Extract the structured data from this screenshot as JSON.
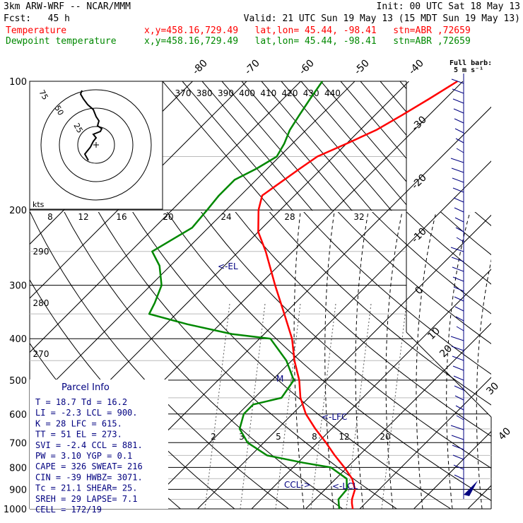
{
  "header": {
    "model": "3km ARW-WRF -- NCAR/MMM",
    "init": "Init: 00 UTC Sat 18 May 13",
    "fcst": "Fcst:   45 h",
    "valid": "Valid: 21 UTC Sun 19 May 13 (15 MDT Sun 19 May 13)",
    "temp_label": "Temperature",
    "dew_label": "Dewpoint temperature",
    "temp_loc": "x,y=458.16,729.49   lat,lon= 45.44, -98.41   stn=ABR ,72659",
    "dew_loc": "x,y=458.16,729.49   lat,lon= 45.44, -98.41   stn=ABR ,72659",
    "barb_title": "Full barb:",
    "barb_unit": "5 m s⁻¹"
  },
  "colors": {
    "temperature": "#ff0000",
    "dewpoint": "#008800",
    "annotation": "#000080",
    "grid": "#000000",
    "isohume": "#555555"
  },
  "chart_data": {
    "type": "line",
    "skew_t": true,
    "y_axis": {
      "scale": "log",
      "label": "",
      "ticks": [
        100,
        200,
        300,
        400,
        500,
        600,
        700,
        800,
        900,
        1000
      ]
    },
    "isotherm_labels": [
      "-80",
      "-70",
      "-60",
      "-50",
      "-40",
      "-30",
      "-20",
      "-10",
      "0",
      "10",
      "20",
      "30",
      "40"
    ],
    "theta_labels": [
      "370",
      "380",
      "390",
      "400",
      "410",
      "420",
      "430",
      "440"
    ],
    "mixing_ratio_upper": [
      "8",
      "12",
      "16",
      "20",
      "24",
      "28",
      "32"
    ],
    "mixing_ratio_lower": [
      "2",
      "3",
      "5",
      "8",
      "12",
      "20"
    ],
    "theta_side_labels": [
      "290",
      "280",
      "270"
    ],
    "series": [
      {
        "name": "Temperature",
        "color": "#ff0000",
        "points": [
          [
            1000,
            18.7
          ],
          [
            970,
            17.5
          ],
          [
            950,
            16.8
          ],
          [
            900,
            15.5
          ],
          [
            850,
            13
          ],
          [
            800,
            9.5
          ],
          [
            750,
            5.5
          ],
          [
            700,
            1.5
          ],
          [
            650,
            -3
          ],
          [
            600,
            -7.5
          ],
          [
            550,
            -11.5
          ],
          [
            500,
            -15
          ],
          [
            450,
            -19.5
          ],
          [
            400,
            -24
          ],
          [
            350,
            -30
          ],
          [
            300,
            -37
          ],
          [
            250,
            -45
          ],
          [
            225,
            -50
          ],
          [
            200,
            -54
          ],
          [
            185,
            -56
          ],
          [
            160,
            -54
          ],
          [
            150,
            -53
          ],
          [
            140,
            -50
          ],
          [
            130,
            -47
          ],
          [
            120,
            -45
          ],
          [
            110,
            -43
          ],
          [
            100,
            -41
          ]
        ]
      },
      {
        "name": "Dewpoint temperature",
        "color": "#008800",
        "points": [
          [
            1000,
            16.2
          ],
          [
            950,
            14.3
          ],
          [
            900,
            14
          ],
          [
            850,
            12
          ],
          [
            800,
            7
          ],
          [
            780,
            1
          ],
          [
            750,
            -7
          ],
          [
            700,
            -13
          ],
          [
            650,
            -17
          ],
          [
            600,
            -19
          ],
          [
            570,
            -19
          ],
          [
            550,
            -15
          ],
          [
            500,
            -16
          ],
          [
            450,
            -21
          ],
          [
            400,
            -28
          ],
          [
            390,
            -36
          ],
          [
            370,
            -46
          ],
          [
            350,
            -55
          ],
          [
            330,
            -56
          ],
          [
            300,
            -58
          ],
          [
            270,
            -62
          ],
          [
            250,
            -66
          ],
          [
            220,
            -63
          ],
          [
            200,
            -63.5
          ],
          [
            185,
            -64
          ],
          [
            170,
            -64
          ],
          [
            160,
            -62
          ],
          [
            150,
            -60.5
          ],
          [
            140,
            -61.5
          ],
          [
            130,
            -63
          ],
          [
            120,
            -64
          ],
          [
            110,
            -65
          ],
          [
            100,
            -66
          ]
        ]
      }
    ],
    "annotations": [
      "<-EL",
      "<-LFC",
      "CCL->",
      "<-LCL",
      "M"
    ],
    "hodograph": {
      "rings": [
        "25",
        "50",
        "75"
      ],
      "kts": "kts"
    }
  },
  "parcel": {
    "title": "Parcel Info",
    "rows": [
      "T  =    18.7  Td =  16.2",
      "LI =    -2.3  LCL =  900.",
      "K  =     28  LFC = 615.",
      "TT =     51  EL  =  273.",
      "SVI =  -2.4  CCL =  881.",
      "PW =   3.10  YGP =   0.1",
      "CAPE =   326  SWEAT=  216",
      "CIN =   -39  HWBZ= 3071.",
      "Tc =   21.1  SHEAR=  25.",
      "SREH =    29  LAPSE=  7.1",
      "CELL = 172/19"
    ]
  }
}
